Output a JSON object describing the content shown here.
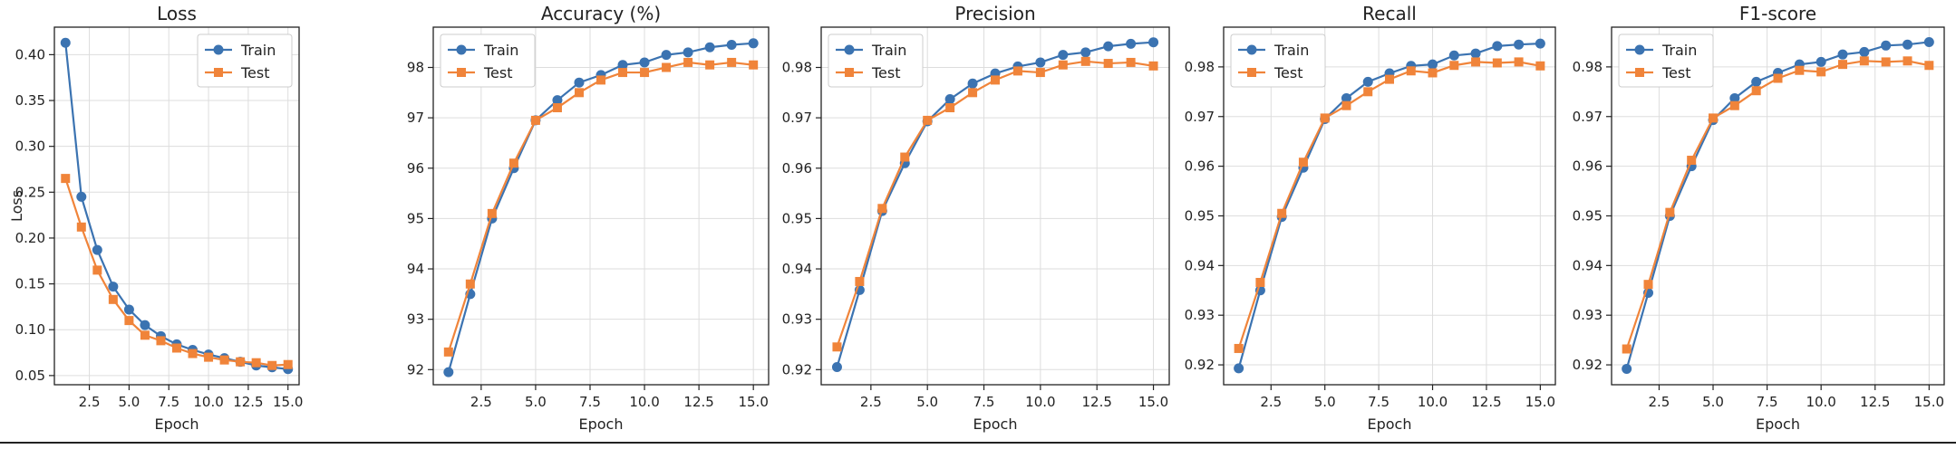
{
  "colors": {
    "train": "#3b73b1",
    "test": "#f0843a"
  },
  "chart_data": [
    {
      "type": "line",
      "title": "Loss",
      "xlabel": "Epoch",
      "ylabel": "Loss",
      "xlim": [
        0.3,
        15.7
      ],
      "ylim": [
        0.04,
        0.43
      ],
      "xticks": [
        2.5,
        5.0,
        7.5,
        10.0,
        12.5,
        15.0
      ],
      "xticklabels": [
        "2.5",
        "5.0",
        "7.5",
        "10.0",
        "12.5",
        "15.0"
      ],
      "yticks": [
        0.05,
        0.1,
        0.15,
        0.2,
        0.25,
        0.3,
        0.35,
        0.4
      ],
      "yticklabels": [
        "0.05",
        "0.10",
        "0.15",
        "0.20",
        "0.25",
        "0.30",
        "0.35",
        "0.40"
      ],
      "grid": true,
      "legend": "upper right",
      "x": [
        1,
        2,
        3,
        4,
        5,
        6,
        7,
        8,
        9,
        10,
        11,
        12,
        13,
        14,
        15
      ],
      "series": [
        {
          "name": "Train",
          "marker": "circle",
          "values": [
            0.413,
            0.245,
            0.187,
            0.147,
            0.122,
            0.105,
            0.093,
            0.084,
            0.078,
            0.073,
            0.069,
            0.065,
            0.061,
            0.059,
            0.057
          ]
        },
        {
          "name": "Test",
          "marker": "square",
          "values": [
            0.265,
            0.212,
            0.165,
            0.133,
            0.11,
            0.094,
            0.088,
            0.08,
            0.074,
            0.07,
            0.067,
            0.065,
            0.064,
            0.061,
            0.062
          ]
        }
      ]
    },
    {
      "type": "line",
      "title": "Accuracy (%)",
      "xlabel": "Epoch",
      "ylabel": "",
      "xlim": [
        0.3,
        15.7
      ],
      "ylim": [
        91.7,
        98.8
      ],
      "xticks": [
        2.5,
        5.0,
        7.5,
        10.0,
        12.5,
        15.0
      ],
      "xticklabels": [
        "2.5",
        "5.0",
        "7.5",
        "10.0",
        "12.5",
        "15.0"
      ],
      "yticks": [
        92,
        93,
        94,
        95,
        96,
        97,
        98
      ],
      "yticklabels": [
        "92",
        "93",
        "94",
        "95",
        "96",
        "97",
        "98"
      ],
      "grid": true,
      "legend": "upper left",
      "x": [
        1,
        2,
        3,
        4,
        5,
        6,
        7,
        8,
        9,
        10,
        11,
        12,
        13,
        14,
        15
      ],
      "series": [
        {
          "name": "Train",
          "marker": "circle",
          "values": [
            91.95,
            93.5,
            95.0,
            96.0,
            96.95,
            97.35,
            97.7,
            97.85,
            98.05,
            98.1,
            98.25,
            98.3,
            98.4,
            98.45,
            98.48
          ]
        },
        {
          "name": "Test",
          "marker": "square",
          "values": [
            92.35,
            93.7,
            95.1,
            96.1,
            96.95,
            97.2,
            97.5,
            97.75,
            97.9,
            97.9,
            98.0,
            98.1,
            98.05,
            98.1,
            98.05
          ]
        }
      ]
    },
    {
      "type": "line",
      "title": "Precision",
      "xlabel": "Epoch",
      "ylabel": "",
      "xlim": [
        0.3,
        15.7
      ],
      "ylim": [
        0.917,
        0.988
      ],
      "xticks": [
        2.5,
        5.0,
        7.5,
        10.0,
        12.5,
        15.0
      ],
      "xticklabels": [
        "2.5",
        "5.0",
        "7.5",
        "10.0",
        "12.5",
        "15.0"
      ],
      "yticks": [
        0.92,
        0.93,
        0.94,
        0.95,
        0.96,
        0.97,
        0.98
      ],
      "yticklabels": [
        "0.92",
        "0.93",
        "0.94",
        "0.95",
        "0.96",
        "0.97",
        "0.98"
      ],
      "grid": true,
      "legend": "upper left",
      "x": [
        1,
        2,
        3,
        4,
        5,
        6,
        7,
        8,
        9,
        10,
        11,
        12,
        13,
        14,
        15
      ],
      "series": [
        {
          "name": "Train",
          "marker": "circle",
          "values": [
            0.9205,
            0.9358,
            0.9515,
            0.961,
            0.9693,
            0.9737,
            0.9768,
            0.9788,
            0.9802,
            0.981,
            0.9825,
            0.983,
            0.9842,
            0.9847,
            0.985
          ]
        },
        {
          "name": "Test",
          "marker": "square",
          "values": [
            0.9245,
            0.9375,
            0.952,
            0.9622,
            0.9695,
            0.972,
            0.975,
            0.9775,
            0.9793,
            0.979,
            0.9805,
            0.9812,
            0.9808,
            0.981,
            0.9803
          ]
        }
      ]
    },
    {
      "type": "line",
      "title": "Recall",
      "xlabel": "Epoch",
      "ylabel": "",
      "xlim": [
        0.3,
        15.7
      ],
      "ylim": [
        0.916,
        0.988
      ],
      "xticks": [
        2.5,
        5.0,
        7.5,
        10.0,
        12.5,
        15.0
      ],
      "xticklabels": [
        "2.5",
        "5.0",
        "7.5",
        "10.0",
        "12.5",
        "15.0"
      ],
      "yticks": [
        0.92,
        0.93,
        0.94,
        0.95,
        0.96,
        0.97,
        0.98
      ],
      "yticklabels": [
        "0.92",
        "0.93",
        "0.94",
        "0.95",
        "0.96",
        "0.97",
        "0.98"
      ],
      "grid": true,
      "legend": "upper left",
      "x": [
        1,
        2,
        3,
        4,
        5,
        6,
        7,
        8,
        9,
        10,
        11,
        12,
        13,
        14,
        15
      ],
      "series": [
        {
          "name": "Train",
          "marker": "circle",
          "values": [
            0.9193,
            0.935,
            0.9498,
            0.9597,
            0.9695,
            0.9737,
            0.977,
            0.9787,
            0.9802,
            0.9805,
            0.9823,
            0.9827,
            0.9842,
            0.9845,
            0.9847
          ]
        },
        {
          "name": "Test",
          "marker": "square",
          "values": [
            0.9233,
            0.9366,
            0.9505,
            0.9608,
            0.9697,
            0.9722,
            0.975,
            0.9775,
            0.9792,
            0.9788,
            0.9803,
            0.981,
            0.9808,
            0.981,
            0.9802
          ]
        }
      ]
    },
    {
      "type": "line",
      "title": "F1-score",
      "xlabel": "Epoch",
      "ylabel": "",
      "xlim": [
        0.3,
        15.7
      ],
      "ylim": [
        0.916,
        0.988
      ],
      "xticks": [
        2.5,
        5.0,
        7.5,
        10.0,
        12.5,
        15.0
      ],
      "xticklabels": [
        "2.5",
        "5.0",
        "7.5",
        "10.0",
        "12.5",
        "15.0"
      ],
      "yticks": [
        0.92,
        0.93,
        0.94,
        0.95,
        0.96,
        0.97,
        0.98
      ],
      "yticklabels": [
        "0.92",
        "0.93",
        "0.94",
        "0.95",
        "0.96",
        "0.97",
        "0.98"
      ],
      "grid": true,
      "legend": "upper left",
      "x": [
        1,
        2,
        3,
        4,
        5,
        6,
        7,
        8,
        9,
        10,
        11,
        12,
        13,
        14,
        15
      ],
      "series": [
        {
          "name": "Train",
          "marker": "circle",
          "values": [
            0.9192,
            0.9345,
            0.95,
            0.96,
            0.9693,
            0.9737,
            0.977,
            0.9788,
            0.9805,
            0.981,
            0.9825,
            0.983,
            0.9843,
            0.9845,
            0.985
          ]
        },
        {
          "name": "Test",
          "marker": "square",
          "values": [
            0.9232,
            0.9362,
            0.9507,
            0.9612,
            0.9697,
            0.9722,
            0.9752,
            0.9777,
            0.9793,
            0.979,
            0.9805,
            0.9812,
            0.981,
            0.9812,
            0.9803
          ]
        }
      ]
    }
  ]
}
